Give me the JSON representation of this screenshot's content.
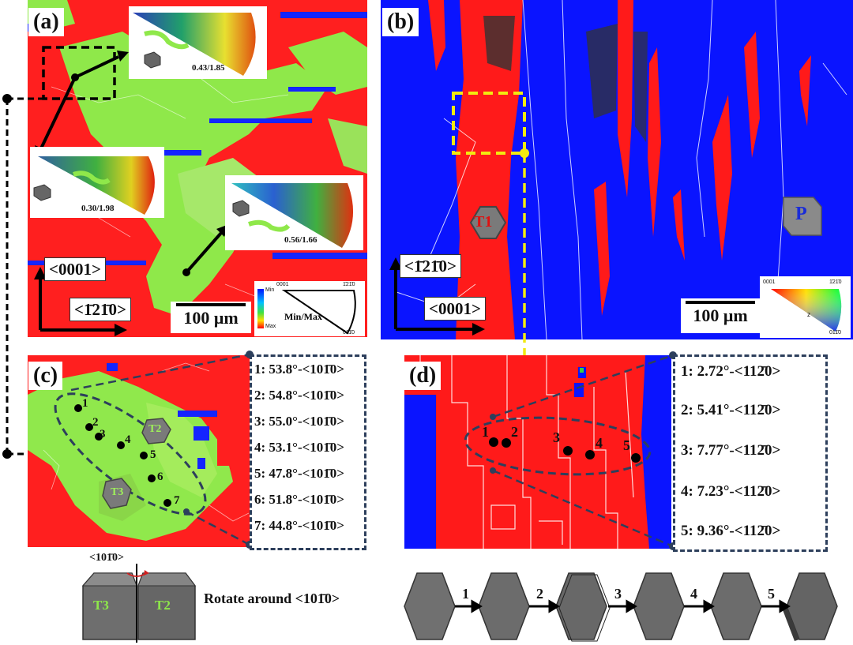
{
  "panel_a": {
    "label": "(a)",
    "axis_vertical": "<0001>",
    "axis_horizontal": "<1̄21̄0>",
    "scale": "100 μm",
    "insets": [
      {
        "value": "0.43/1.85"
      },
      {
        "value": "0.30/1.98"
      },
      {
        "value": "0.56/1.66"
      }
    ],
    "legend": {
      "pole_0001": "0001",
      "pole_top_right": "1̄21̄0",
      "pole_bottom": "011̄0",
      "min": "Min",
      "max": "Max",
      "center_label": "Min/Max"
    }
  },
  "panel_b": {
    "label": "(b)",
    "axis_vertical": "<1̄21̄0>",
    "axis_horizontal": "<0001>",
    "scale": "100 μm",
    "t1": "T1",
    "p": "P",
    "legend": {
      "pole_0001": "0001",
      "pole_top_right": "1̄21̄0",
      "pole_bottom": "011̄0",
      "z": "z"
    }
  },
  "panel_c": {
    "label": "(c)",
    "t2": "T2",
    "t3": "T3",
    "points": [
      "1",
      "2",
      "3",
      "4",
      "5",
      "6",
      "7"
    ],
    "list": [
      "1: 53.8°-<101̄0>",
      "2: 54.8°-<101̄0>",
      "3: 55.0°-<101̄0>",
      "4: 53.1°-<101̄0>",
      "5: 47.8°-<101̄0>",
      "6: 51.8°-<101̄0>",
      "7: 44.8°-<101̄0>"
    ]
  },
  "panel_d": {
    "label": "(d)",
    "points": [
      "1",
      "2",
      "3",
      "4",
      "5"
    ],
    "list": [
      "1: 2.72°-<112̄0>",
      "2: 5.41°-<112̄0>",
      "3: 7.77°-<112̄0>",
      "4: 7.23°-<112̄0>",
      "5: 9.36°-<112̄0>"
    ]
  },
  "bottom_left": {
    "axis": "<101̄0>",
    "t3": "T3",
    "t2": "T2",
    "caption": "Rotate around <101̄0>"
  },
  "bottom_right": {
    "steps": [
      "1",
      "2",
      "3",
      "4",
      "5"
    ]
  },
  "colors": {
    "red": "#ff1a1a",
    "green": "#8ee84a",
    "blue": "#0a14ff",
    "dash_navy": "#2d3f5c",
    "yellow": "#f2ea10"
  }
}
